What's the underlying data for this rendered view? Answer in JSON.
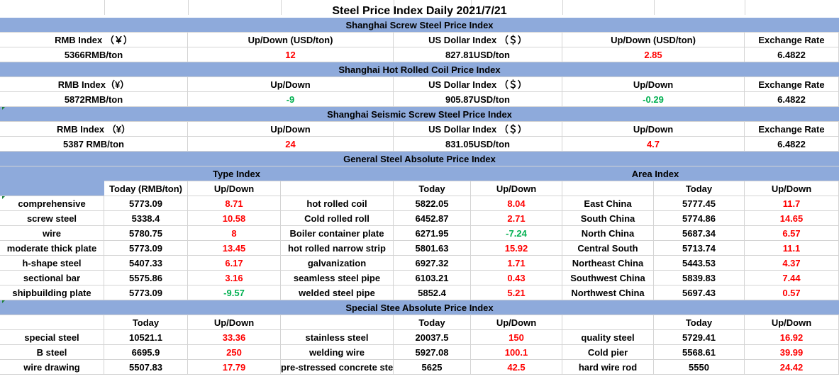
{
  "title": "Steel Price Index Daily  2021/7/21",
  "screw": {
    "header": "Shanghai Screw Steel Price Index",
    "labels": [
      "RMB Index （￥）",
      "Up/Down (USD/ton)",
      "US Dollar Index （＄）",
      "Up/Down (USD/ton)",
      "Exchange Rate"
    ],
    "values": [
      "5366RMB/ton",
      "12",
      "827.81USD/ton",
      "2.85",
      "6.4822"
    ]
  },
  "hotcoil": {
    "header": "Shanghai Hot Rolled Coil Price Index",
    "labels": [
      "RMB Index（¥）",
      "Up/Down",
      "US Dollar Index （＄）",
      "Up/Down",
      "Exchange Rate"
    ],
    "values": [
      "5872RMB/ton",
      "-9",
      "905.87USD/ton",
      "-0.29",
      "6.4822"
    ]
  },
  "seismic": {
    "header": "Shanghai Seismic Screw Steel Price Index",
    "labels": [
      "RMB Index （¥）",
      "Up/Down",
      "US Dollar Index （＄）",
      "Up/Down",
      "Exchange Rate"
    ],
    "values": [
      "5387 RMB/ton",
      "24",
      "831.05USD/ton",
      "4.7",
      "6.4822"
    ]
  },
  "general": {
    "header": "General Steel Absolute Price Index",
    "type_index": "Type Index",
    "area_index": "Area Index",
    "col_headers": [
      "Today (RMB/ton)",
      "Up/Down",
      "Today",
      "Up/Down",
      "Today",
      "Up/Down"
    ],
    "rows": [
      [
        "comprehensive",
        "5773.09",
        "8.71",
        "hot rolled coil",
        "5822.05",
        "8.04",
        "East China",
        "5777.45",
        "11.7"
      ],
      [
        "screw steel",
        "5338.4",
        "10.58",
        "Cold rolled roll",
        "6452.87",
        "2.71",
        "South China",
        "5774.86",
        "14.65"
      ],
      [
        "wire",
        "5780.75",
        "8",
        "Boiler container plate",
        "6271.95",
        "-7.24",
        "North China",
        "5687.34",
        "6.57"
      ],
      [
        "moderate thick plate",
        "5773.09",
        "13.45",
        "hot rolled narrow strip",
        "5801.63",
        "15.92",
        "Central South",
        "5713.74",
        "11.1"
      ],
      [
        "h-shape steel",
        "5407.33",
        "6.17",
        "galvanization",
        "6927.32",
        "1.71",
        "Northeast China",
        "5443.53",
        "4.37"
      ],
      [
        "sectional bar",
        "5575.86",
        "3.16",
        "seamless steel pipe",
        "6103.21",
        "0.43",
        "Southwest China",
        "5839.83",
        "7.44"
      ],
      [
        "shipbuilding plate",
        "5773.09",
        "-9.57",
        "welded steel pipe",
        "5852.4",
        "5.21",
        "Northwest China",
        "5697.43",
        "0.57"
      ]
    ]
  },
  "special": {
    "header": "Special Stee Absolute Price Index",
    "col_headers": [
      "Today",
      "Up/Down",
      "Today",
      "Up/Down",
      "Today",
      "Up/Down"
    ],
    "rows": [
      [
        "special steel",
        "10521.1",
        "33.36",
        "stainless steel",
        "20037.5",
        "150",
        "quality steel",
        "5729.41",
        "16.92"
      ],
      [
        "B steel",
        "6695.9",
        "250",
        "welding wire",
        "5927.08",
        "100.1",
        "Cold pier",
        "5568.61",
        "39.99"
      ],
      [
        "wire drawing",
        "5507.83",
        "17.79",
        "pre-stressed concrete steel",
        "5625",
        "42.5",
        "hard wire rod",
        "5550",
        "24.42"
      ]
    ]
  },
  "colors": {
    "band": "#8eaadb",
    "up": "#ff0000",
    "down": "#00b050",
    "grid": "#d4d4d4"
  }
}
